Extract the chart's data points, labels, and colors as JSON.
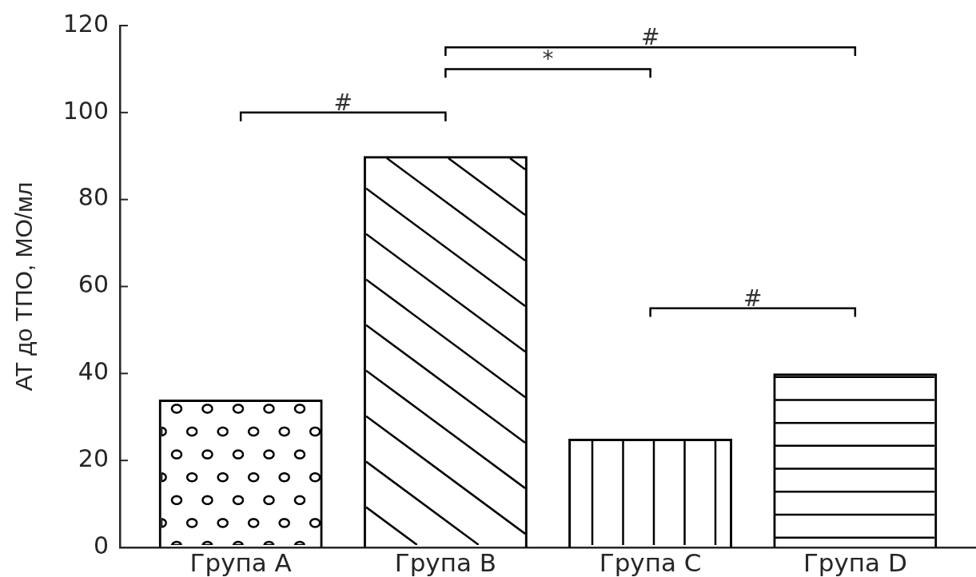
{
  "chart_data": {
    "type": "bar",
    "categories": [
      "Група A",
      "Група B",
      "Група C",
      "Група D"
    ],
    "values": [
      34,
      90,
      25,
      40
    ],
    "color": "#000000",
    "ylabel": "АТ до ТПО, МО/мл",
    "ylim": [
      0,
      120
    ],
    "yticks": [
      0,
      20,
      40,
      60,
      80,
      100,
      120
    ],
    "annotations": [
      "#",
      "*",
      "#",
      "#"
    ]
  }
}
